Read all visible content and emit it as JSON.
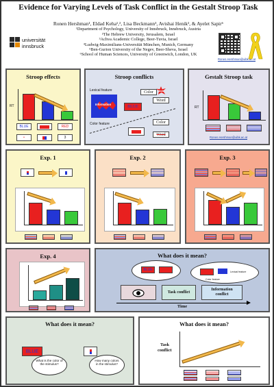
{
  "header": {
    "title": "Evidence for Varying Levels of Task Conflict in the Gestalt Stroop Task",
    "authors": "Ronen Hershman¹, Eldad Keha¹,², Lisa Beckmann³, Avishai Henik², & Ayelet Sapir⁶",
    "affiliations": [
      "¹Department of Psychology, University of Innsbruck, Innsbruck, Austria",
      "²The Hebrew University, Jerusalem, Israel",
      "³Achva Academic College, Beer-Tuvia, Israel",
      "⁴Ludwig-Maximilians-Universität München, Munich, Germany",
      "⁵Ben-Gurion University of the Negev, Beer-Sheva, Israel",
      "⁶School of Human Sciences, University of Greenwich, London, UK"
    ],
    "logo_line1": "universität",
    "logo_line2": "innsbruck",
    "email": "Ronen.Hershman@uibk.ac.at"
  },
  "panels": {
    "stroop_effects": {
      "title": "Stroop effects",
      "ylabel": "RT",
      "stim_blue": "BLUE",
      "stim_red": "RED",
      "stim_num": "3"
    },
    "stroop_conflicts": {
      "title": "Stroop conflicts",
      "lexical": "Lexical feature",
      "information": "Information",
      "color_feature": "Color feature",
      "color": "Color",
      "word": "Word",
      "task": "Task",
      "blue": "BLUE"
    },
    "gestalt": {
      "title": "Gestalt Stroop task",
      "ylabel": "RT"
    },
    "exp1": {
      "title": "Exp. 1"
    },
    "exp2": {
      "title": "Exp. 2"
    },
    "exp3": {
      "title": "Exp. 3"
    },
    "exp4": {
      "title": "Exp. 4"
    },
    "meaning_top": {
      "title": "What does it mean?",
      "task_conflict": "Task conflict",
      "info_conflict_1": "Information",
      "info_conflict_2": "conflict",
      "time": "Time",
      "lexical_feature": "Lexical feature",
      "color_feature": "Color feature"
    },
    "meaning_left": {
      "title": "What does it mean?",
      "stim_word": "BLUE",
      "q1": "What is the color of the stimulus?",
      "q2": "How many colors in the stimulus?"
    },
    "meaning_right": {
      "title": "What does it mean?",
      "ylabel_1": "Task",
      "ylabel_2": "conflict"
    }
  },
  "colors": {
    "red": "#e8201f",
    "blue": "#2336d6",
    "green": "#39c93a",
    "teal": "#1f8f86"
  }
}
